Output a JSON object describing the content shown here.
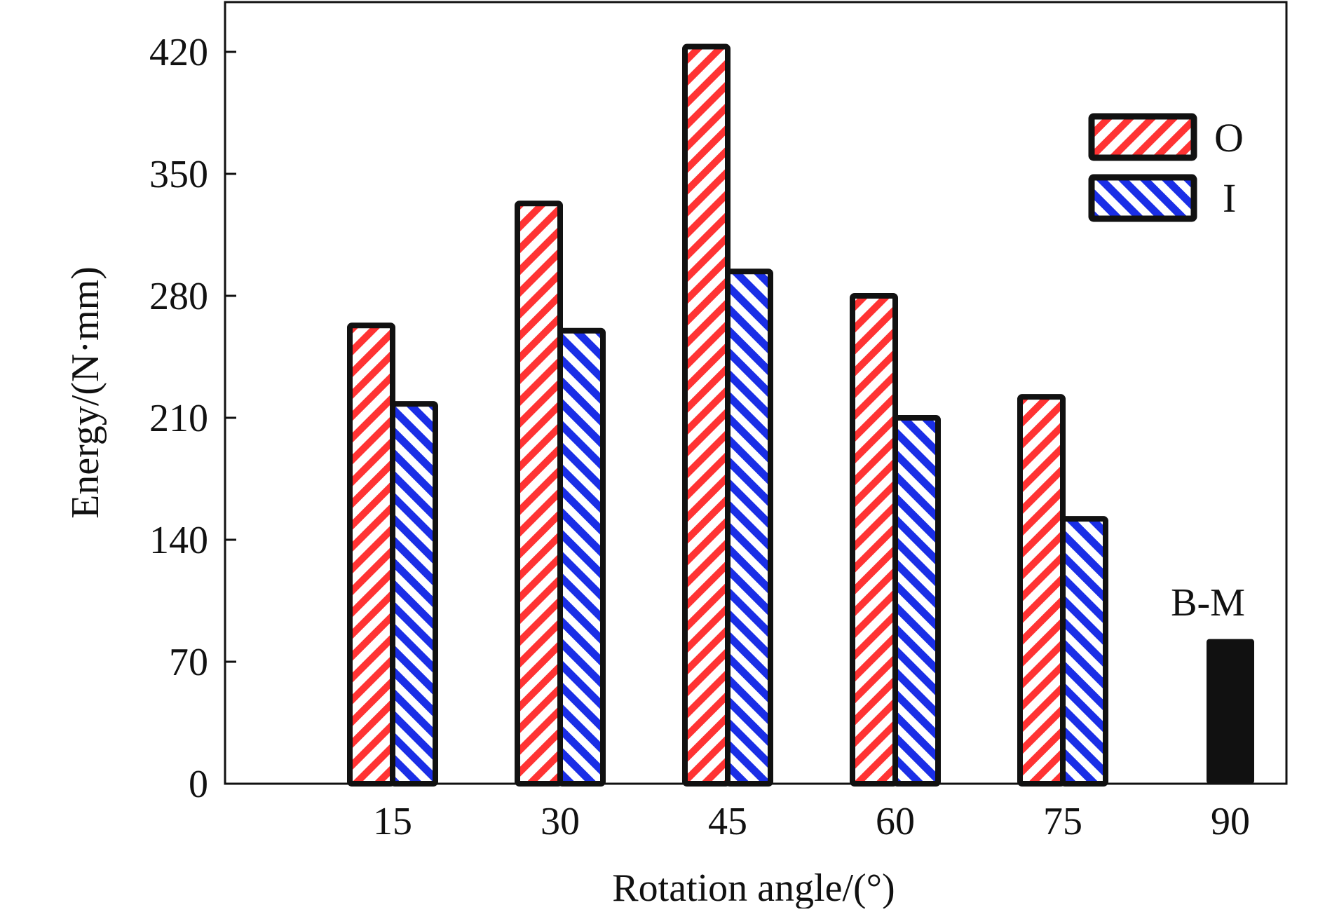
{
  "chart_data": {
    "type": "bar",
    "title": "",
    "xlabel": "Rotation angle/(°)",
    "ylabel": "Energy/(N·mm)",
    "categories": [
      "15",
      "30",
      "45",
      "60",
      "75",
      "90"
    ],
    "yticks": [
      "0",
      "70",
      "140",
      "210",
      "280",
      "350",
      "420"
    ],
    "ylim": [
      0,
      450
    ],
    "series": [
      {
        "name": "O",
        "values": [
          263,
          333,
          423,
          280,
          222,
          null
        ],
        "color": "#ff3333",
        "pattern": "hatch-down"
      },
      {
        "name": "I",
        "values": [
          218,
          260,
          294,
          210,
          152,
          null
        ],
        "color": "#1a2ee6",
        "pattern": "hatch-up"
      }
    ],
    "baseline": {
      "name": "B-M",
      "category": "90",
      "value": 83,
      "color": "#111111"
    },
    "legend_position": "top-right",
    "grid": false
  }
}
